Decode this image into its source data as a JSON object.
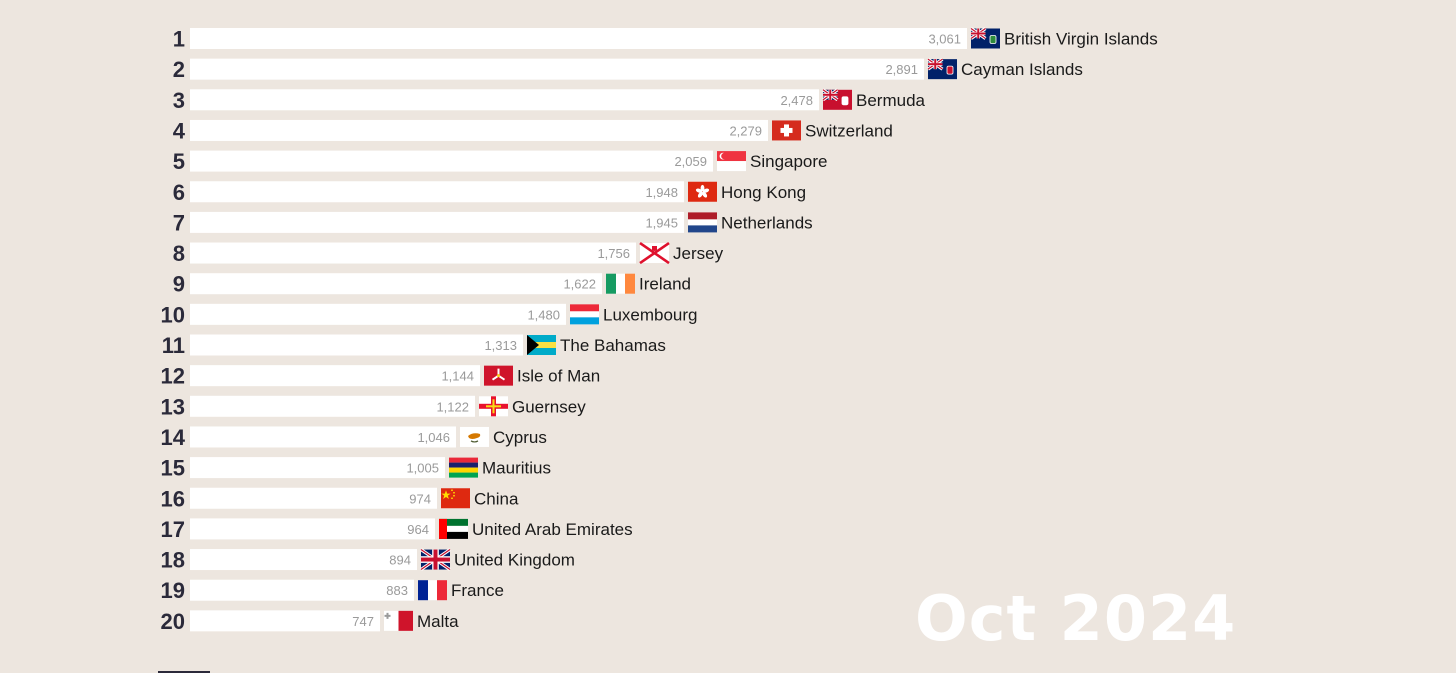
{
  "chart_data": {
    "type": "bar",
    "orientation": "horizontal",
    "title": "",
    "period_label": "Oct 2024",
    "xlim": [
      0,
      3061
    ],
    "grid": false,
    "rows": [
      {
        "rank": "1",
        "country": "British Virgin Islands",
        "value": 3061,
        "value_label": "3,061",
        "flag": "bvi-flag"
      },
      {
        "rank": "2",
        "country": "Cayman Islands",
        "value": 2891,
        "value_label": "2,891",
        "flag": "cayman-flag"
      },
      {
        "rank": "3",
        "country": "Bermuda",
        "value": 2478,
        "value_label": "2,478",
        "flag": "bermuda-flag"
      },
      {
        "rank": "4",
        "country": "Switzerland",
        "value": 2279,
        "value_label": "2,279",
        "flag": "switzerland-flag"
      },
      {
        "rank": "5",
        "country": "Singapore",
        "value": 2059,
        "value_label": "2,059",
        "flag": "singapore-flag"
      },
      {
        "rank": "6",
        "country": "Hong Kong",
        "value": 1948,
        "value_label": "1,948",
        "flag": "hong-kong-flag"
      },
      {
        "rank": "7",
        "country": "Netherlands",
        "value": 1945,
        "value_label": "1,945",
        "flag": "netherlands-flag"
      },
      {
        "rank": "8",
        "country": "Jersey",
        "value": 1756,
        "value_label": "1,756",
        "flag": "jersey-flag"
      },
      {
        "rank": "9",
        "country": "Ireland",
        "value": 1622,
        "value_label": "1,622",
        "flag": "ireland-flag"
      },
      {
        "rank": "10",
        "country": "Luxembourg",
        "value": 1480,
        "value_label": "1,480",
        "flag": "luxembourg-flag"
      },
      {
        "rank": "11",
        "country": "The Bahamas",
        "value": 1313,
        "value_label": "1,313",
        "flag": "bahamas-flag"
      },
      {
        "rank": "12",
        "country": "Isle of Man",
        "value": 1144,
        "value_label": "1,144",
        "flag": "isle-of-man-flag"
      },
      {
        "rank": "13",
        "country": "Guernsey",
        "value": 1122,
        "value_label": "1,122",
        "flag": "guernsey-flag"
      },
      {
        "rank": "14",
        "country": "Cyprus",
        "value": 1046,
        "value_label": "1,046",
        "flag": "cyprus-flag"
      },
      {
        "rank": "15",
        "country": "Mauritius",
        "value": 1005,
        "value_label": "1,005",
        "flag": "mauritius-flag"
      },
      {
        "rank": "16",
        "country": "China",
        "value": 974,
        "value_label": "974",
        "flag": "china-flag"
      },
      {
        "rank": "17",
        "country": "United Arab Emirates",
        "value": 964,
        "value_label": "964",
        "flag": "uae-flag"
      },
      {
        "rank": "18",
        "country": "United Kingdom",
        "value": 894,
        "value_label": "894",
        "flag": "uk-flag"
      },
      {
        "rank": "19",
        "country": "France",
        "value": 883,
        "value_label": "883",
        "flag": "france-flag"
      },
      {
        "rank": "20",
        "country": "Malta",
        "value": 747,
        "value_label": "747",
        "flag": "malta-flag"
      }
    ]
  },
  "colors": {
    "background": "#ede6df",
    "bar": "#ffffff",
    "rank_text": "#2b2a3a",
    "value_text": "#9a9a9a",
    "country_text": "#1a1a1a",
    "period_text": "#ffffff"
  }
}
